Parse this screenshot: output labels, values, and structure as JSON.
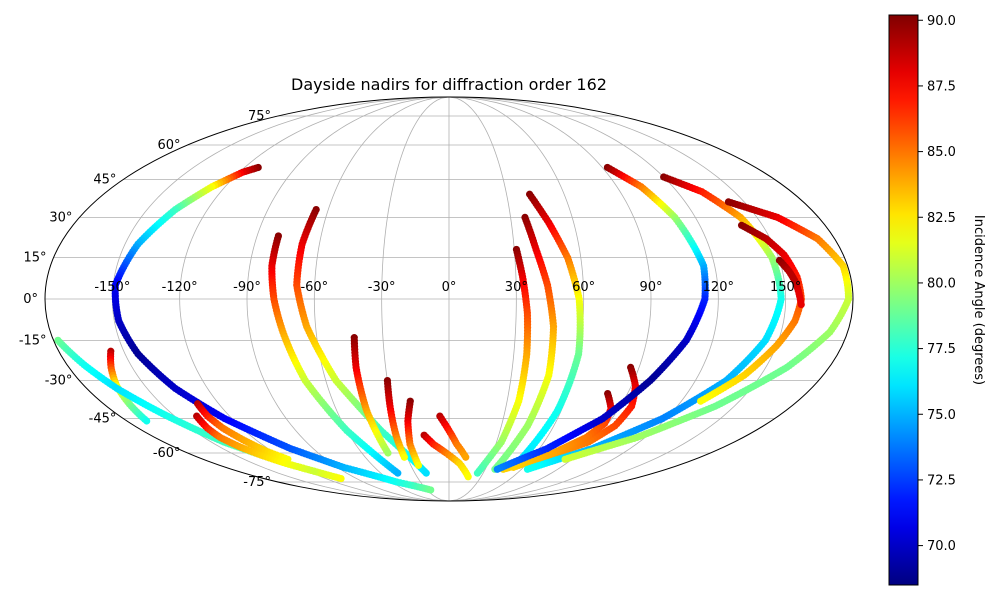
{
  "chart_data": {
    "type": "scatter",
    "projection": "mollweide",
    "title": "Dayside nadirs for diffraction order 162",
    "grid": true,
    "lon_ticks": [
      {
        "value": -150,
        "label": "-150°"
      },
      {
        "value": -120,
        "label": "-120°"
      },
      {
        "value": -90,
        "label": "-90°"
      },
      {
        "value": -60,
        "label": "-60°"
      },
      {
        "value": -30,
        "label": "-30°"
      },
      {
        "value": 0,
        "label": "0°"
      },
      {
        "value": 30,
        "label": "30°"
      },
      {
        "value": 60,
        "label": "60°"
      },
      {
        "value": 90,
        "label": "90°"
      },
      {
        "value": 120,
        "label": "120°"
      },
      {
        "value": 150,
        "label": "150°"
      }
    ],
    "lat_ticks": [
      {
        "value": 75,
        "label": "75°"
      },
      {
        "value": 60,
        "label": "60°"
      },
      {
        "value": 45,
        "label": "45°"
      },
      {
        "value": 30,
        "label": "30°"
      },
      {
        "value": 15,
        "label": "15°"
      },
      {
        "value": 0,
        "label": "0°"
      },
      {
        "value": -15,
        "label": "-15°"
      },
      {
        "value": -30,
        "label": "-30°"
      },
      {
        "value": -45,
        "label": "-45°"
      },
      {
        "value": -60,
        "label": "-60°"
      },
      {
        "value": -75,
        "label": "-75°"
      }
    ],
    "colorbar": {
      "label": "Incidence Angle (degrees)",
      "colormap": "jet",
      "range": [
        68.5,
        90.2
      ],
      "ticks": [
        {
          "value": 70.0,
          "label": "70.0"
        },
        {
          "value": 72.5,
          "label": "72.5"
        },
        {
          "value": 75.0,
          "label": "75.0"
        },
        {
          "value": 77.5,
          "label": "77.5"
        },
        {
          "value": 80.0,
          "label": "80.0"
        },
        {
          "value": 82.5,
          "label": "82.5"
        },
        {
          "value": 85.0,
          "label": "85.0"
        },
        {
          "value": 87.5,
          "label": "87.5"
        },
        {
          "value": 90.0,
          "label": "90.0"
        }
      ]
    },
    "tracks": [
      {
        "lon": [
          -112,
          -118,
          -127,
          -136,
          -144,
          -149,
          -148,
          -144,
          -136,
          -124,
          -105,
          -85,
          -55,
          -25
        ],
        "lat": [
          50,
          48,
          42,
          33,
          20,
          5,
          -8,
          -20,
          -33,
          -45,
          -58,
          -67,
          -75,
          -80
        ],
        "incidence": [
          90,
          88,
          82,
          78,
          75,
          71,
          70,
          69,
          70,
          71,
          73,
          75,
          77,
          79
        ]
      },
      {
        "lon": [
          -156,
          -160,
          -164,
          -167,
          -169
        ],
        "lat": [
          -19,
          -25,
          -32,
          -40,
          -46
        ],
        "incidence": [
          89,
          86,
          82,
          79,
          77
        ]
      },
      {
        "lon": [
          -178,
          -172,
          -165,
          -155,
          -142,
          -125,
          -105
        ],
        "lat": [
          -15,
          -24,
          -33,
          -43,
          -55,
          -65,
          -73
        ],
        "incidence": [
          79,
          77,
          76,
          77,
          78,
          80,
          82
        ]
      },
      {
        "lon": [
          -131,
          -132,
          -131,
          -128,
          -124,
          -118
        ],
        "lat": [
          -39,
          -44,
          -49,
          -54,
          -59,
          -63
        ],
        "incidence": [
          89,
          87,
          85,
          84,
          83,
          82
        ]
      },
      {
        "lon": [
          -138,
          -140,
          -140,
          -137,
          -132,
          -125,
          -115
        ],
        "lat": [
          -44,
          -49,
          -53,
          -57,
          -61,
          -65,
          -69
        ],
        "incidence": [
          89,
          87,
          85,
          84,
          83,
          82,
          81
        ]
      },
      {
        "lon": [
          -80,
          -80,
          -78,
          -75,
          -70,
          -60,
          -45
        ],
        "lat": [
          23,
          12,
          0,
          -12,
          -30,
          -50,
          -70
        ],
        "incidence": [
          90,
          88,
          86,
          84,
          81,
          78,
          75
        ]
      },
      {
        "lon": [
          -66,
          -68,
          -68,
          -64,
          -55,
          -40,
          -20
        ],
        "lat": [
          33,
          20,
          5,
          -10,
          -30,
          -50,
          -70
        ],
        "incidence": [
          90,
          88,
          86,
          84,
          81,
          78,
          76
        ]
      },
      {
        "lon": [
          -43,
          -44,
          -44,
          -42
        ],
        "lat": [
          -14,
          -25,
          -42,
          -60
        ],
        "incidence": [
          90,
          88,
          84,
          80
        ]
      },
      {
        "lon": [
          -30,
          -31,
          -32,
          -32
        ],
        "lat": [
          -30,
          -40,
          -52,
          -62
        ],
        "incidence": [
          90,
          88,
          85,
          82
        ]
      },
      {
        "lon": [
          -20,
          -23,
          -25,
          -24
        ],
        "lat": [
          -38,
          -46,
          -56,
          -66
        ],
        "incidence": [
          90,
          88,
          85,
          82
        ]
      },
      {
        "lon": [
          -15,
          -10,
          -2,
          8,
          18
        ],
        "lat": [
          -52,
          -56,
          -60,
          -65,
          -72
        ],
        "incidence": [
          89,
          87,
          85,
          83,
          82
        ]
      },
      {
        "lon": [
          -5,
          0,
          5,
          12
        ],
        "lat": [
          -44,
          -50,
          -56,
          -62
        ],
        "incidence": [
          89,
          87,
          85,
          84
        ]
      },
      {
        "lon": [
          31,
          33,
          35,
          36,
          36,
          33,
          25
        ],
        "lat": [
          18,
          8,
          -5,
          -20,
          -38,
          -55,
          -70
        ],
        "incidence": [
          90,
          88,
          86,
          84,
          82,
          80,
          78
        ]
      },
      {
        "lon": [
          37,
          40,
          44,
          47,
          48,
          45,
          38
        ],
        "lat": [
          30,
          18,
          5,
          -10,
          -28,
          -48,
          -68
        ],
        "incidence": [
          90,
          88,
          86,
          84,
          82,
          80,
          79
        ]
      },
      {
        "lon": [
          42,
          48,
          54,
          58,
          60,
          58,
          52
        ],
        "lat": [
          39,
          28,
          15,
          0,
          -20,
          -42,
          -65
        ],
        "incidence": [
          90,
          88,
          85,
          82,
          79,
          77,
          76
        ]
      },
      {
        "lon": [
          86,
          92,
          96,
          95,
          88,
          70,
          45
        ],
        "lat": [
          -25,
          -32,
          -40,
          -48,
          -55,
          -62,
          -68
        ],
        "incidence": [
          90,
          88,
          87,
          86,
          85,
          84,
          83
        ]
      },
      {
        "lon": [
          80,
          86,
          88,
          84,
          72,
          52
        ],
        "lat": [
          -35,
          -41,
          -47,
          -53,
          -60,
          -67
        ],
        "incidence": [
          90,
          88,
          86,
          85,
          84,
          83
        ]
      },
      {
        "lon": [
          93,
          103,
          110,
          115,
          114,
          108,
          98,
          85,
          65,
          40
        ],
        "lat": [
          50,
          42,
          30,
          12,
          0,
          -15,
          -30,
          -45,
          -58,
          -68
        ],
        "incidence": [
          90,
          85,
          80,
          75,
          72,
          70,
          69,
          70,
          72,
          74
        ]
      },
      {
        "lon": [
          120,
          133,
          142,
          147,
          148,
          144,
          135,
          118,
          95,
          65
        ],
        "lat": [
          46,
          40,
          30,
          15,
          0,
          -15,
          -30,
          -45,
          -58,
          -68
        ],
        "incidence": [
          90,
          87,
          84,
          80,
          77,
          76,
          75,
          74,
          75,
          77
        ]
      },
      {
        "lon": [
          142,
          160,
          172,
          178,
          178,
          172,
          160,
          140,
          115,
          85
        ],
        "lat": [
          36,
          30,
          22,
          12,
          0,
          -12,
          -25,
          -40,
          -53,
          -63
        ],
        "incidence": [
          90,
          88,
          85,
          83,
          81,
          80,
          79,
          79,
          80,
          81
        ]
      },
      {
        "lon": [
          140,
          148,
          153,
          156,
          157,
          155,
          150,
          142,
          130
        ],
        "lat": [
          27,
          22,
          16,
          8,
          0,
          -8,
          -17,
          -28,
          -38
        ],
        "incidence": [
          90,
          89,
          88,
          87,
          86,
          85,
          84,
          83,
          82
        ]
      },
      {
        "lon": [
          150,
          153,
          155,
          156,
          157
        ],
        "lat": [
          14,
          10,
          6,
          2,
          -2
        ],
        "incidence": [
          90,
          89,
          89,
          88,
          88
        ]
      }
    ]
  }
}
